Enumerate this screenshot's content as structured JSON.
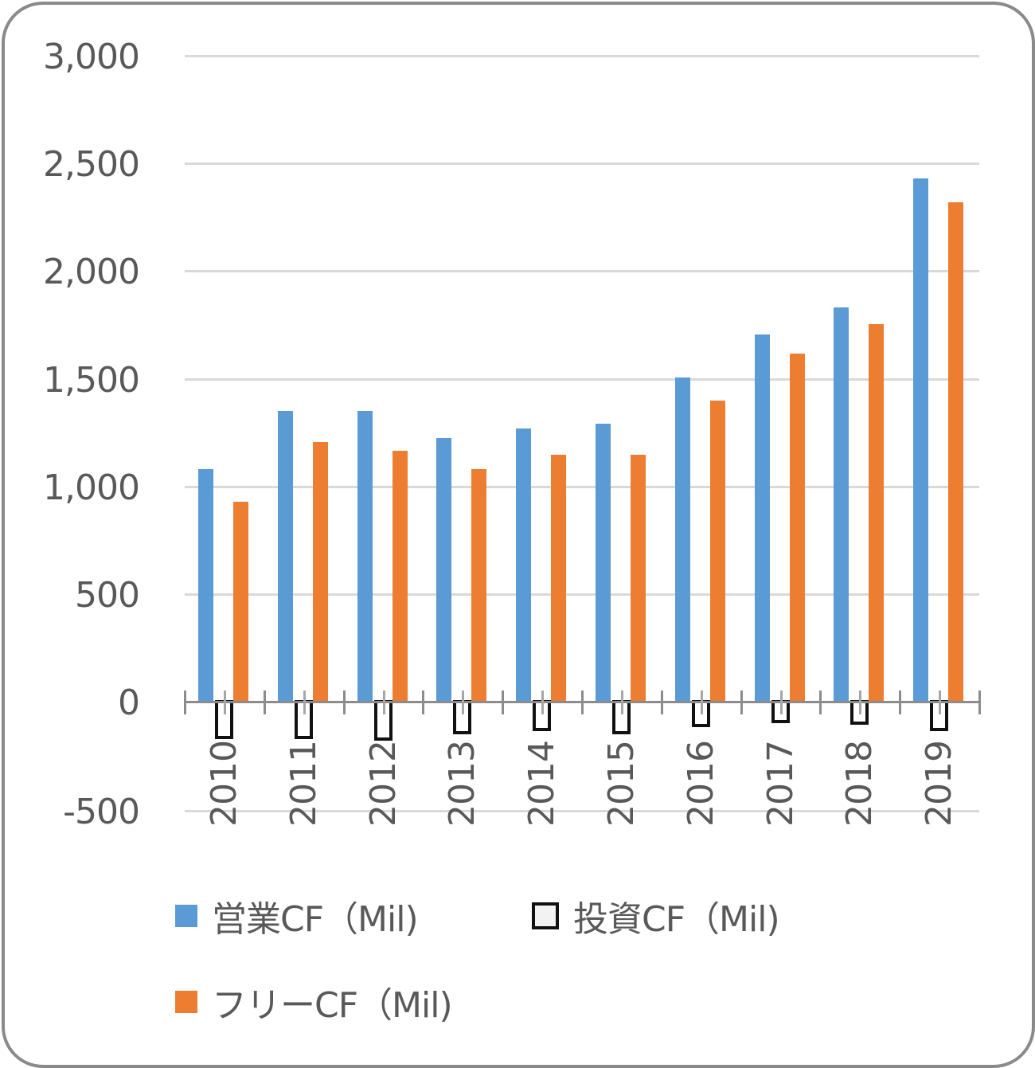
{
  "chart_data": {
    "type": "bar",
    "title": "",
    "xlabel": "",
    "ylabel": "",
    "ylim": [
      -500,
      3000
    ],
    "yticks": [
      "3,000",
      "2,500",
      "2,000",
      "1,500",
      "1,000",
      "500",
      "0",
      "-500"
    ],
    "grid": true,
    "legend_position": "bottom",
    "categories": [
      "2010",
      "2011",
      "2012",
      "2013",
      "2014",
      "2015",
      "2016",
      "2017",
      "2018",
      "2019"
    ],
    "series": [
      {
        "name": "営業CF（Mil)",
        "color": "#5b9bd5",
        "values": [
          1080,
          1350,
          1350,
          1225,
          1270,
          1290,
          1505,
          1705,
          1830,
          2430
        ]
      },
      {
        "name": "投資CF（Mil)",
        "color": "#ffffff",
        "border": "#111111",
        "values": [
          -170,
          -170,
          -180,
          -150,
          -135,
          -150,
          -115,
          -100,
          -105,
          -135
        ]
      },
      {
        "name": "フリーCF（Mil)",
        "color": "#ed7d31",
        "values": [
          930,
          1205,
          1165,
          1080,
          1145,
          1145,
          1400,
          1615,
          1755,
          2320
        ]
      }
    ]
  },
  "legend": {
    "operating": "営業CF（Mil)",
    "investing": "投資CF（Mil)",
    "free": "フリーCF（Mil)"
  }
}
